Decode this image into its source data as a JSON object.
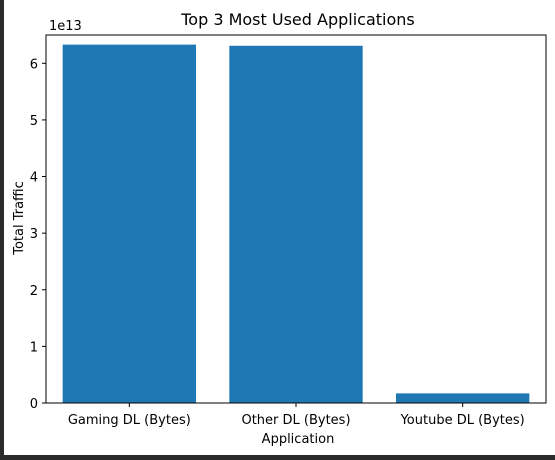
{
  "chart_data": {
    "type": "bar",
    "title": "Top 3 Most Used Applications",
    "xlabel": "Application",
    "ylabel": "Total Traffic",
    "offset_label": "1e13",
    "offset_multiplier": 10000000000000.0,
    "categories": [
      "Gaming DL (Bytes)",
      "Other DL (Bytes)",
      "Youtube DL (Bytes)"
    ],
    "values": [
      63300000000000.0,
      63100000000000.0,
      1700000000000.0
    ],
    "ylim": [
      0,
      65000000000000.0
    ],
    "yticks": [
      0,
      1,
      2,
      3,
      4,
      5,
      6
    ],
    "ytick_labels": [
      "0",
      "1",
      "2",
      "3",
      "4",
      "5",
      "6"
    ],
    "bar_color": "#1f77b4",
    "grid": false,
    "legend": "none"
  }
}
